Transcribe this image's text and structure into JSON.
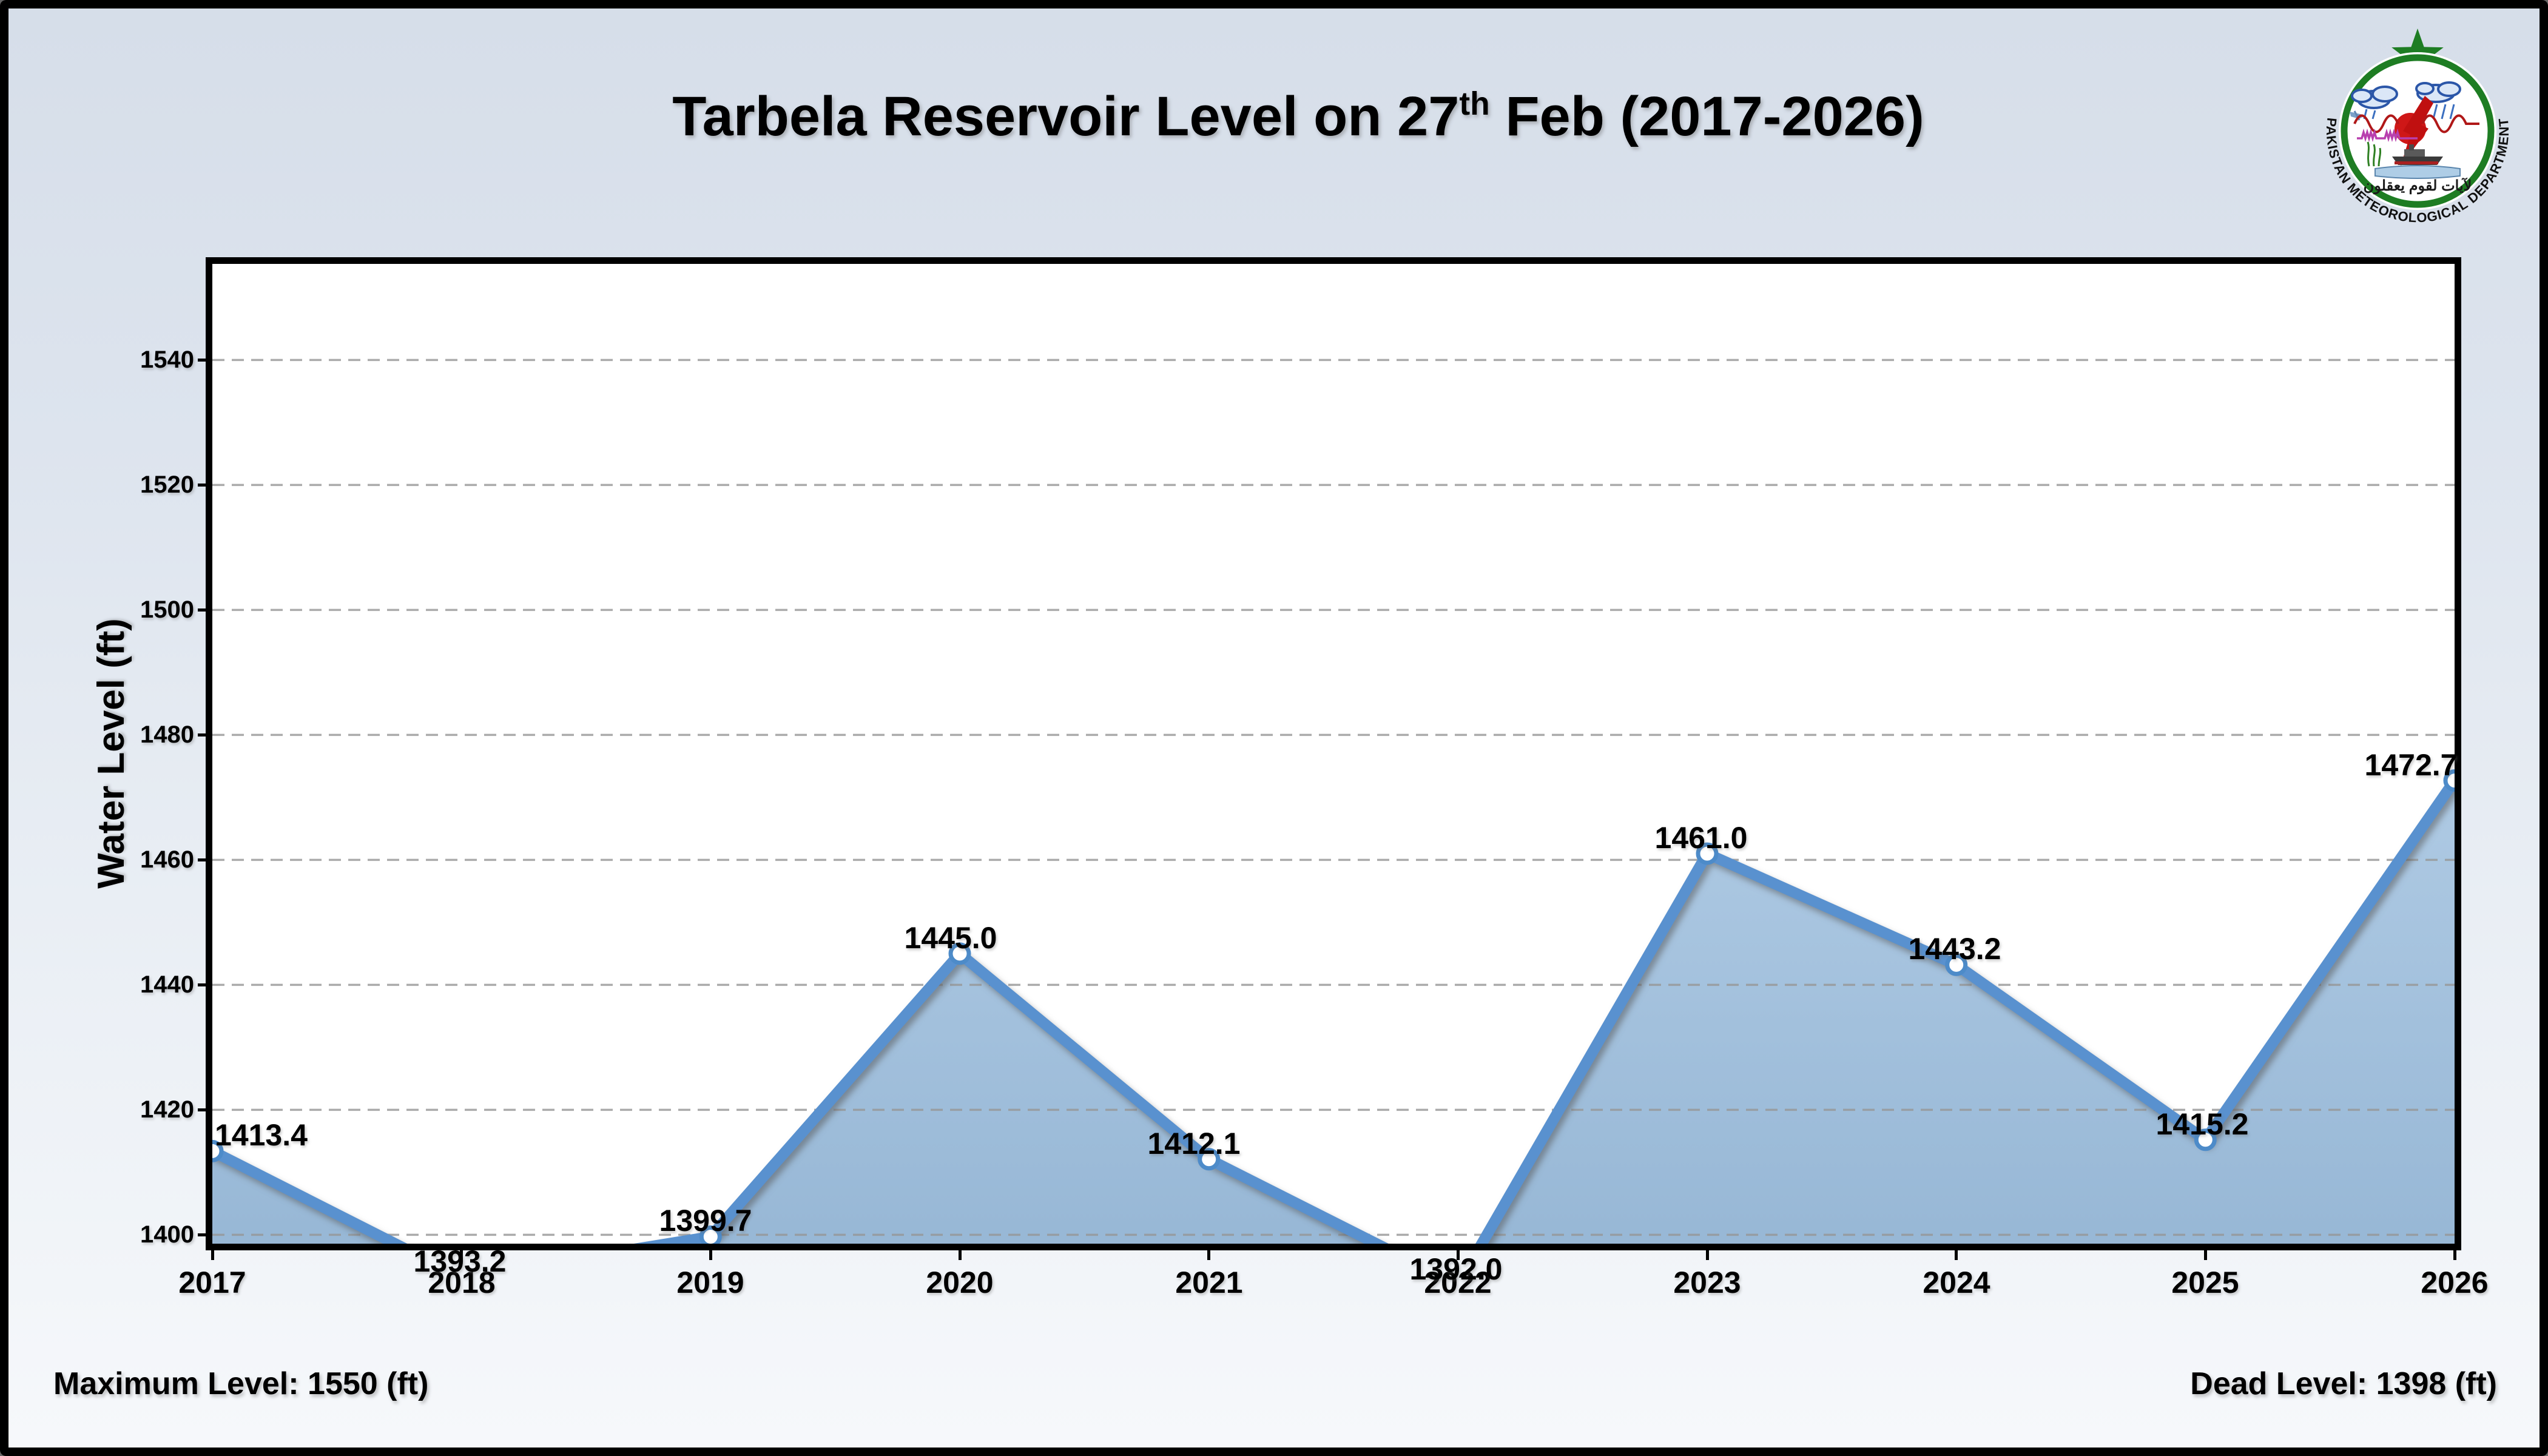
{
  "title": {
    "prefix": "Tarbela Reservoir Level on 27",
    "superscript": "th",
    "suffix": " Feb (2017-2026)"
  },
  "footer": {
    "max_level": "Maximum Level: 1550 (ft)",
    "dead_level": "Dead Level: 1398 (ft)"
  },
  "logo": {
    "organization": "PAKISTAN METEOROLOGICAL DEPARTMENT",
    "motto": "لآيات لقوم يعقلون"
  },
  "chart_data": {
    "type": "area",
    "title": "Tarbela Reservoir Level on 27th Feb (2017-2026)",
    "x": [
      2017,
      2018,
      2019,
      2020,
      2021,
      2022,
      2023,
      2024,
      2025,
      2026
    ],
    "values": [
      1413.4,
      1393.2,
      1399.7,
      1445.0,
      1412.1,
      1392.0,
      1461.0,
      1443.2,
      1415.2,
      1472.7
    ],
    "labels": [
      "1413.4",
      "1393.2",
      "1399.7",
      "1445.0",
      "1412.1",
      "1392.0",
      "1461.0",
      "1443.2",
      "1415.2",
      "1472.7"
    ],
    "xlabel": "",
    "ylabel": "Water Level (ft)",
    "ylim": [
      1398,
      1555.5
    ],
    "yticks": [
      1400,
      1420,
      1440,
      1460,
      1480,
      1500,
      1520,
      1540
    ],
    "grid": "horizontal dashed",
    "legend": "none",
    "annotations": {
      "maximum_level_ft": 1550,
      "dead_level_ft": 1398
    },
    "colors": {
      "line": "#5991cf",
      "marker_edge": "#4d8bc9",
      "marker_fill": "#ffffff",
      "fill_top": "#aac7e2",
      "fill_bottom": "#8cafd0",
      "grid": "#969696",
      "background_top": "#d6dee9",
      "background_bottom": "#f6f8fb"
    }
  }
}
